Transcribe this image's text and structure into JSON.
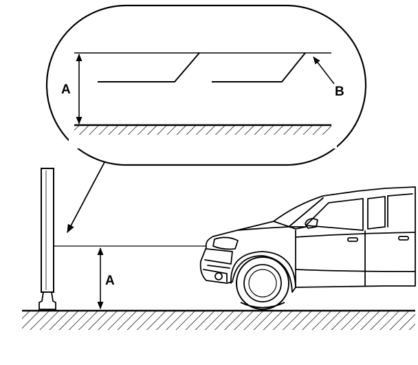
{
  "labels": {
    "detail_height": "A",
    "detail_pointer": "B",
    "main_height": "A"
  },
  "colors": {
    "ink": "#000000",
    "paper": "#ffffff"
  }
}
